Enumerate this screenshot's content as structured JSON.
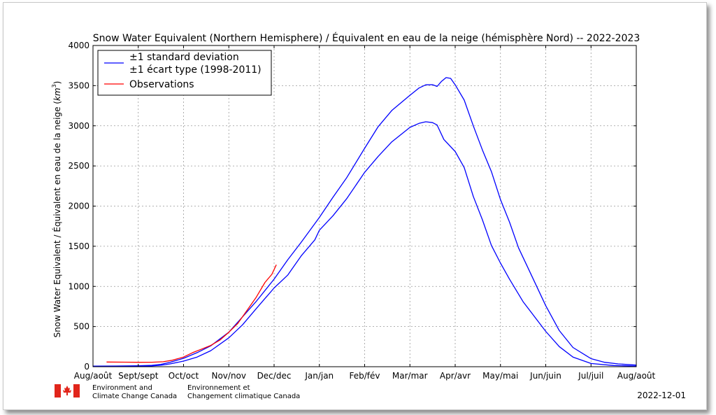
{
  "chart_data": {
    "type": "line",
    "title": "Snow Water Equivalent (Northern Hemisphere) / Équivalent en eau de la neige (hémisphère Nord) -- 2022-2023",
    "xlabel": "",
    "ylabel_text": "Snow Water Equivalent / Équivalent en eau de la neige (",
    "ylabel_unit_base": "km",
    "ylabel_unit_exp": "3",
    "ylabel_close": ")",
    "xlim": [
      0,
      12
    ],
    "ylim": [
      0,
      4000
    ],
    "x_ticks": [
      {
        "v": 0,
        "label": "Aug/août"
      },
      {
        "v": 1,
        "label": "Sept/sept"
      },
      {
        "v": 2,
        "label": "Oct/oct"
      },
      {
        "v": 3,
        "label": "Nov/nov"
      },
      {
        "v": 4,
        "label": "Dec/dec"
      },
      {
        "v": 5,
        "label": "Jan/jan"
      },
      {
        "v": 6,
        "label": "Feb/fév"
      },
      {
        "v": 7,
        "label": "Mar/mar"
      },
      {
        "v": 8,
        "label": "Apr/avr"
      },
      {
        "v": 9,
        "label": "May/mai"
      },
      {
        "v": 10,
        "label": "Jun/juin"
      },
      {
        "v": 11,
        "label": "Jul/juil"
      },
      {
        "v": 12,
        "label": "Aug/août"
      }
    ],
    "y_ticks": [
      0,
      500,
      1000,
      1500,
      2000,
      2500,
      3000,
      3500,
      4000
    ],
    "grid": true,
    "legend_position": "top-left",
    "legend": {
      "std_line1": "±1 standard deviation",
      "std_line2": "±1 écart type (1998-2011)",
      "obs": "Observations"
    },
    "series": [
      {
        "name": "±1 standard deviation / ±1 écart type (1998-2011)",
        "role": "upper",
        "color": "#0000ff",
        "points": [
          [
            0,
            8
          ],
          [
            0.5,
            9
          ],
          [
            1,
            12
          ],
          [
            1.3,
            17
          ],
          [
            1.5,
            30
          ],
          [
            1.7,
            55
          ],
          [
            2,
            105
          ],
          [
            2.3,
            175
          ],
          [
            2.6,
            260
          ],
          [
            3,
            430
          ],
          [
            3.3,
            620
          ],
          [
            3.6,
            810
          ],
          [
            4,
            1090
          ],
          [
            4.3,
            1330
          ],
          [
            4.6,
            1550
          ],
          [
            5,
            1860
          ],
          [
            5.3,
            2110
          ],
          [
            5.6,
            2350
          ],
          [
            6,
            2720
          ],
          [
            6.3,
            2990
          ],
          [
            6.6,
            3190
          ],
          [
            7,
            3380
          ],
          [
            7.2,
            3470
          ],
          [
            7.35,
            3510
          ],
          [
            7.5,
            3512
          ],
          [
            7.6,
            3490
          ],
          [
            7.7,
            3555
          ],
          [
            7.8,
            3600
          ],
          [
            7.9,
            3590
          ],
          [
            8,
            3510
          ],
          [
            8.2,
            3320
          ],
          [
            8.4,
            3000
          ],
          [
            8.6,
            2700
          ],
          [
            8.8,
            2430
          ],
          [
            9,
            2080
          ],
          [
            9.2,
            1800
          ],
          [
            9.4,
            1480
          ],
          [
            9.6,
            1240
          ],
          [
            10,
            760
          ],
          [
            10.3,
            450
          ],
          [
            10.6,
            240
          ],
          [
            11,
            100
          ],
          [
            11.3,
            55
          ],
          [
            11.6,
            35
          ],
          [
            12,
            20
          ]
        ]
      },
      {
        "name": "±1 standard deviation / ±1 écart type (1998-2011)",
        "role": "lower",
        "color": "#0000ff",
        "points": [
          [
            0,
            3
          ],
          [
            0.5,
            4
          ],
          [
            1,
            6
          ],
          [
            1.3,
            10
          ],
          [
            1.5,
            18
          ],
          [
            1.7,
            35
          ],
          [
            2,
            70
          ],
          [
            2.3,
            120
          ],
          [
            2.6,
            200
          ],
          [
            3,
            360
          ],
          [
            3.3,
            520
          ],
          [
            3.6,
            720
          ],
          [
            4,
            980
          ],
          [
            4.3,
            1140
          ],
          [
            4.6,
            1380
          ],
          [
            4.9,
            1580
          ],
          [
            5,
            1700
          ],
          [
            5.3,
            1880
          ],
          [
            5.6,
            2090
          ],
          [
            6,
            2420
          ],
          [
            6.3,
            2620
          ],
          [
            6.6,
            2800
          ],
          [
            7,
            2980
          ],
          [
            7.2,
            3030
          ],
          [
            7.35,
            3050
          ],
          [
            7.5,
            3040
          ],
          [
            7.6,
            3010
          ],
          [
            7.75,
            2830
          ],
          [
            8,
            2680
          ],
          [
            8.2,
            2480
          ],
          [
            8.4,
            2120
          ],
          [
            8.6,
            1830
          ],
          [
            8.8,
            1510
          ],
          [
            9,
            1290
          ],
          [
            9.2,
            1090
          ],
          [
            9.5,
            810
          ],
          [
            10,
            440
          ],
          [
            10.3,
            250
          ],
          [
            10.6,
            120
          ],
          [
            11,
            40
          ],
          [
            11.5,
            15
          ],
          [
            12,
            8
          ]
        ]
      },
      {
        "name": "Observations",
        "role": "obs",
        "color": "#ff0000",
        "points": [
          [
            0.3,
            58
          ],
          [
            0.7,
            57
          ],
          [
            1,
            55
          ],
          [
            1.3,
            56
          ],
          [
            1.55,
            62
          ],
          [
            1.75,
            80
          ],
          [
            2,
            120
          ],
          [
            2.2,
            175
          ],
          [
            2.4,
            220
          ],
          [
            2.6,
            265
          ],
          [
            2.8,
            330
          ],
          [
            3,
            430
          ],
          [
            3.2,
            540
          ],
          [
            3.4,
            700
          ],
          [
            3.6,
            860
          ],
          [
            3.8,
            1050
          ],
          [
            3.95,
            1150
          ],
          [
            4.05,
            1270
          ]
        ]
      }
    ]
  },
  "footer": {
    "org_en_line1": "Environment and",
    "org_en_line2": "Climate Change Canada",
    "org_fr_line1": "Environnement et",
    "org_fr_line2": "Changement climatique Canada",
    "date": "2022-12-01"
  }
}
